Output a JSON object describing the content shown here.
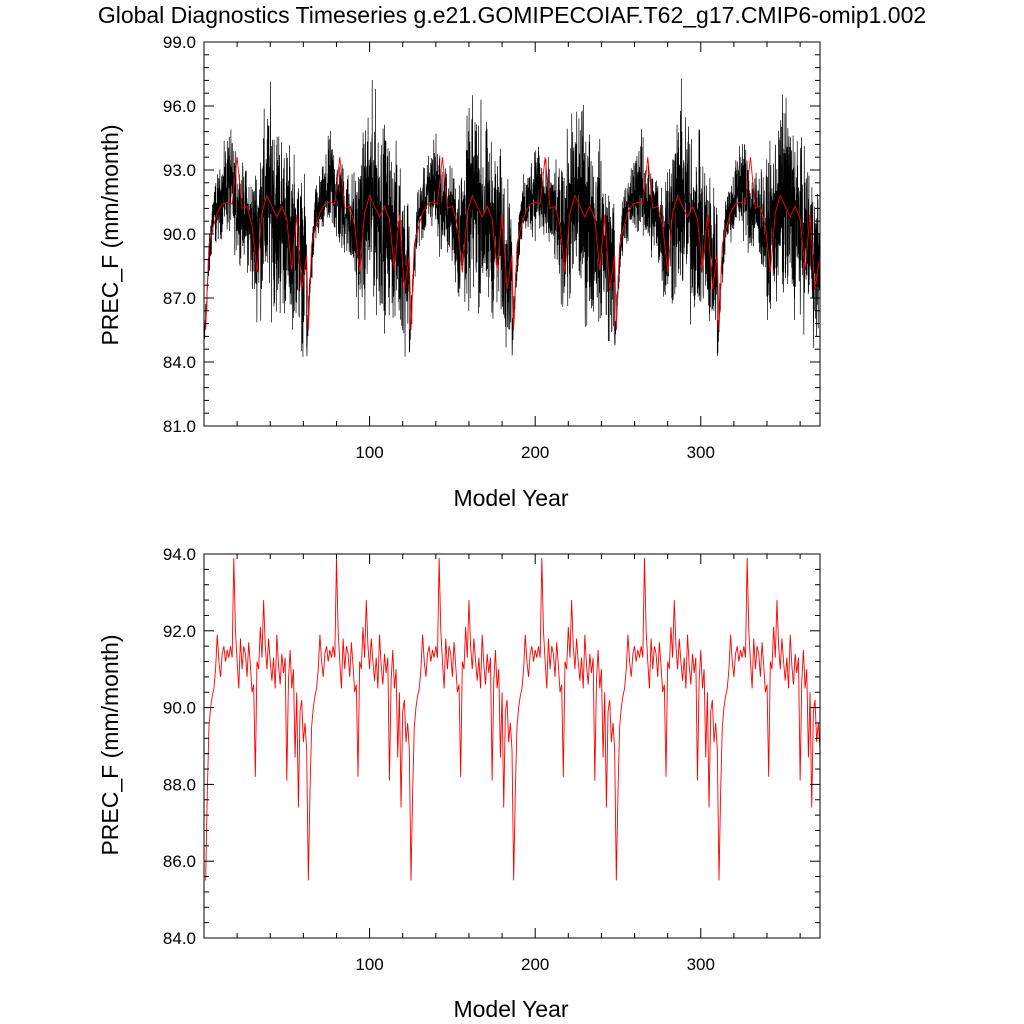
{
  "title": "Global Diagnostics Timeseries g.e21.GOMIPECOIAF.T62_g17.CMIP6-omip1.002",
  "colors": {
    "monthly": "#000000",
    "annual": "#ff0000",
    "axes": "#000000"
  },
  "chart_data": [
    {
      "type": "line",
      "xlabel": "Model Year",
      "ylabel": "PREC_F (mm/month)",
      "xlim": [
        0,
        372
      ],
      "ylim": [
        81.0,
        99.0
      ],
      "xticks": [
        100,
        200,
        300
      ],
      "xtick_labels": [
        "100",
        "200",
        "300"
      ],
      "yticks": [
        81.0,
        84.0,
        87.0,
        90.0,
        93.0,
        96.0,
        99.0
      ],
      "ytick_labels": [
        "81.0",
        "84.0",
        "87.0",
        "90.0",
        "93.0",
        "96.0",
        "99.0"
      ],
      "cycle_length_years": 62,
      "series": [
        {
          "color": "#000000",
          "resolution": "monthly",
          "envelope_x": [
            0,
            2,
            5,
            10,
            15,
            20,
            25,
            30,
            35,
            40,
            45,
            50,
            55,
            60,
            62
          ],
          "envelope_min": [
            83.5,
            86.5,
            89.0,
            89.5,
            89.5,
            88.5,
            88.5,
            86.0,
            85.5,
            86.0,
            85.0,
            85.5,
            85.0,
            84.0,
            85.5
          ],
          "envelope_max": [
            86.0,
            88.5,
            92.5,
            93.5,
            95.5,
            94.0,
            93.5,
            93.5,
            96.0,
            97.5,
            96.5,
            95.0,
            94.5,
            93.0,
            92.5
          ]
        },
        {
          "color": "#ff0000",
          "resolution": "annual",
          "x": [
            1,
            3,
            5,
            8,
            11,
            14,
            17,
            20,
            23,
            26,
            29,
            32,
            35,
            38,
            41,
            44,
            47,
            50,
            53,
            56,
            59,
            62
          ],
          "y": [
            85.5,
            89.5,
            90.2,
            91.0,
            91.4,
            91.5,
            91.4,
            93.6,
            91.2,
            91.3,
            90.4,
            88.2,
            91.0,
            91.8,
            91.3,
            90.8,
            91.3,
            90.7,
            88.3,
            90.9,
            87.4,
            89.0
          ]
        }
      ]
    },
    {
      "type": "line",
      "xlabel": "Model Year",
      "ylabel": "PREC_F (mm/month)",
      "xlim": [
        0,
        372
      ],
      "ylim": [
        84.0,
        94.0
      ],
      "xticks": [
        100,
        200,
        300
      ],
      "xtick_labels": [
        "100",
        "200",
        "300"
      ],
      "yticks": [
        84.0,
        86.0,
        88.0,
        90.0,
        92.0,
        94.0
      ],
      "ytick_labels": [
        "84.0",
        "86.0",
        "88.0",
        "90.0",
        "92.0",
        "94.0"
      ],
      "cycle_length_years": 62,
      "series": [
        {
          "color": "#ff0000",
          "resolution": "annual",
          "x": [
            1,
            2,
            3,
            4,
            5,
            6,
            7,
            8,
            9,
            10,
            11,
            12,
            13,
            14,
            15,
            16,
            17,
            18,
            19,
            20,
            21,
            22,
            23,
            24,
            25,
            26,
            27,
            28,
            29,
            30,
            31,
            32,
            33,
            34,
            35,
            36,
            37,
            38,
            39,
            40,
            41,
            42,
            43,
            44,
            45,
            46,
            47,
            48,
            49,
            50,
            51,
            52,
            53,
            54,
            55,
            56,
            57,
            58,
            59,
            60,
            61,
            62
          ],
          "y": [
            85.5,
            87.8,
            89.5,
            90.0,
            90.3,
            90.5,
            91.0,
            91.9,
            91.2,
            90.8,
            91.4,
            91.6,
            91.2,
            91.5,
            91.3,
            91.6,
            91.3,
            93.9,
            92.0,
            91.2,
            90.5,
            91.8,
            91.0,
            91.6,
            91.4,
            90.8,
            91.7,
            91.1,
            90.4,
            90.6,
            88.2,
            91.2,
            91.0,
            92.1,
            91.3,
            92.8,
            91.6,
            91.0,
            91.8,
            91.2,
            90.7,
            91.3,
            90.5,
            91.9,
            91.1,
            90.6,
            91.4,
            90.9,
            91.3,
            88.1,
            90.7,
            91.5,
            90.5,
            91.0,
            88.7,
            90.4,
            87.4,
            89.9,
            90.2,
            89.1,
            89.6,
            88.9
          ]
        }
      ]
    }
  ]
}
